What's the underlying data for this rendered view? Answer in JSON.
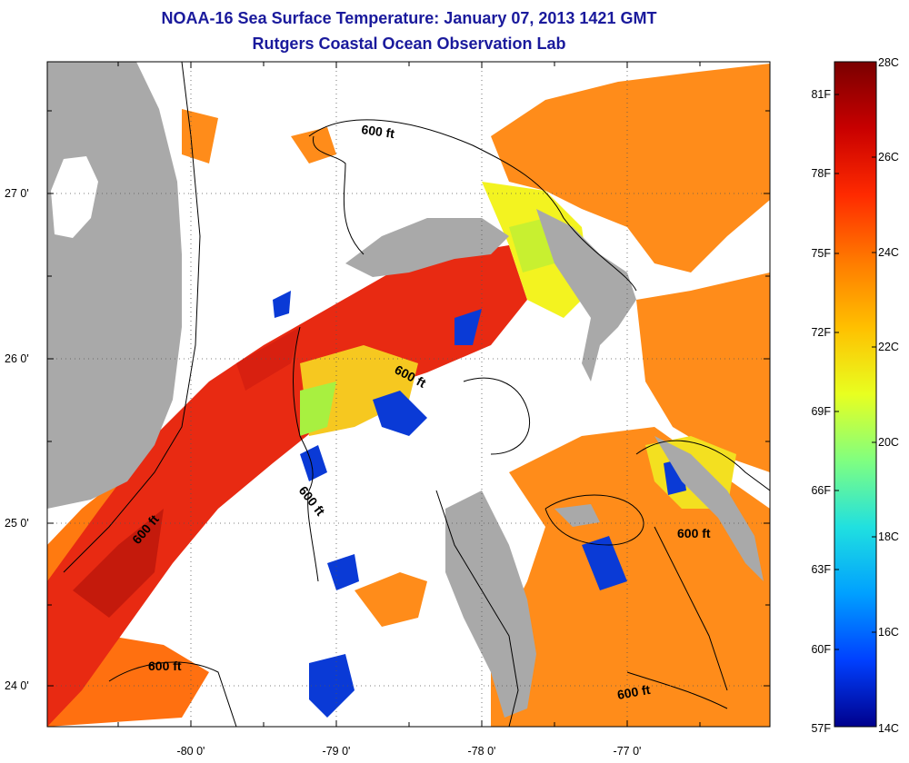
{
  "title_line1": "NOAA-16 Sea Surface Temperature:  January 07, 2013 1421 GMT",
  "title_line2": "Rutgers Coastal Ocean Observation Lab",
  "lat_labels": [
    "27 0'",
    "26 0'",
    "25 0'",
    "24 0'"
  ],
  "lon_labels": [
    "-80 0'",
    "-79 0'",
    "-78 0'",
    "-77 0'"
  ],
  "contour_labels": [
    "600 ft",
    "600 ft",
    "600 ft",
    "600 ft",
    "600 ft",
    "600 ft",
    "600 ft"
  ],
  "colorbar": {
    "celsius": [
      "28C",
      "26C",
      "24C",
      "22C",
      "20C",
      "18C",
      "16C",
      "14C"
    ],
    "fahrenheit": [
      "81F",
      "78F",
      "75F",
      "72F",
      "69F",
      "66F",
      "63F",
      "60F",
      "57F"
    ],
    "stops": [
      "#7a0000",
      "#c80000",
      "#ff2a00",
      "#ff7a00",
      "#ffc000",
      "#e8ff20",
      "#80ff80",
      "#20e0e0",
      "#00a0ff",
      "#0040ff",
      "#00008c"
    ]
  },
  "colors": {
    "land": "#a9a9a9",
    "cloud": "#ffffff",
    "sst_warm": "#ff8c1a",
    "sst_hot": "#e82a12",
    "sst_mid": "#f3f320",
    "sst_cool": "#0a3ad6"
  }
}
